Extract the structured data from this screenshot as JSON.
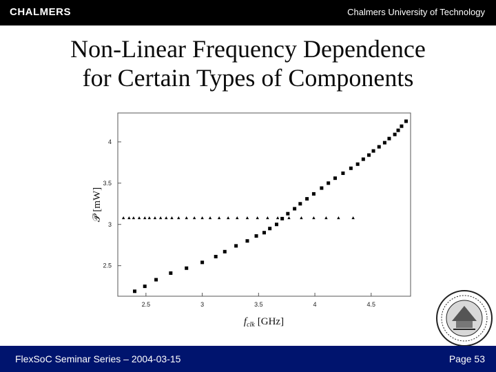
{
  "header": {
    "logo_text": "CHALMERS",
    "university": "Chalmers University of Technology"
  },
  "slide": {
    "title_line1": "Non-Linear Frequency Dependence",
    "title_line2": "for Certain Types of Components"
  },
  "footer": {
    "series": "FlexSoC Seminar Series – 2004-03-15",
    "page": "Page 53"
  },
  "colors": {
    "header_bg": "#000000",
    "footer_bg": "#00146e",
    "marker": "#000000"
  },
  "chart_data": {
    "type": "scatter",
    "xlabel_main": "f",
    "xlabel_sub": "clk",
    "xlabel_unit": "[GHz]",
    "ylabel": "𝒫 [mW]",
    "xlim": [
      2.25,
      4.85
    ],
    "ylim": [
      2.13,
      4.35
    ],
    "xticks": [
      "2.5",
      "3",
      "3.5",
      "4",
      "4.5"
    ],
    "yticks": [
      "2.5",
      "3",
      "3.5",
      "4"
    ],
    "series": [
      {
        "name": "squares",
        "marker": "square",
        "x": [
          2.4,
          2.49,
          2.59,
          2.72,
          2.86,
          3.0,
          3.12,
          3.2,
          3.3,
          3.4,
          3.48,
          3.55,
          3.6,
          3.66,
          3.71,
          3.76,
          3.82,
          3.87,
          3.93,
          3.99,
          4.06,
          4.12,
          4.18,
          4.25,
          4.32,
          4.38,
          4.43,
          4.48,
          4.52,
          4.57,
          4.62,
          4.66,
          4.71,
          4.74,
          4.77,
          4.81
        ],
        "y": [
          2.19,
          2.25,
          2.33,
          2.41,
          2.47,
          2.54,
          2.61,
          2.67,
          2.74,
          2.8,
          2.86,
          2.9,
          2.95,
          3.0,
          3.07,
          3.13,
          3.19,
          3.25,
          3.31,
          3.37,
          3.44,
          3.5,
          3.56,
          3.62,
          3.68,
          3.73,
          3.79,
          3.84,
          3.89,
          3.94,
          3.99,
          4.04,
          4.09,
          4.14,
          4.19,
          4.25
        ]
      },
      {
        "name": "triangles",
        "marker": "triangle",
        "x": [
          2.3,
          2.35,
          2.39,
          2.44,
          2.49,
          2.53,
          2.58,
          2.63,
          2.68,
          2.73,
          2.79,
          2.86,
          2.93,
          3.0,
          3.07,
          3.15,
          3.23,
          3.31,
          3.4,
          3.49,
          3.58,
          3.67,
          3.77,
          3.88,
          3.99,
          4.1,
          4.21,
          4.34
        ],
        "y": [
          3.08,
          3.08,
          3.08,
          3.08,
          3.08,
          3.08,
          3.08,
          3.08,
          3.08,
          3.08,
          3.08,
          3.08,
          3.08,
          3.08,
          3.08,
          3.08,
          3.08,
          3.08,
          3.08,
          3.08,
          3.08,
          3.08,
          3.08,
          3.08,
          3.08,
          3.08,
          3.08,
          3.08
        ]
      }
    ]
  }
}
